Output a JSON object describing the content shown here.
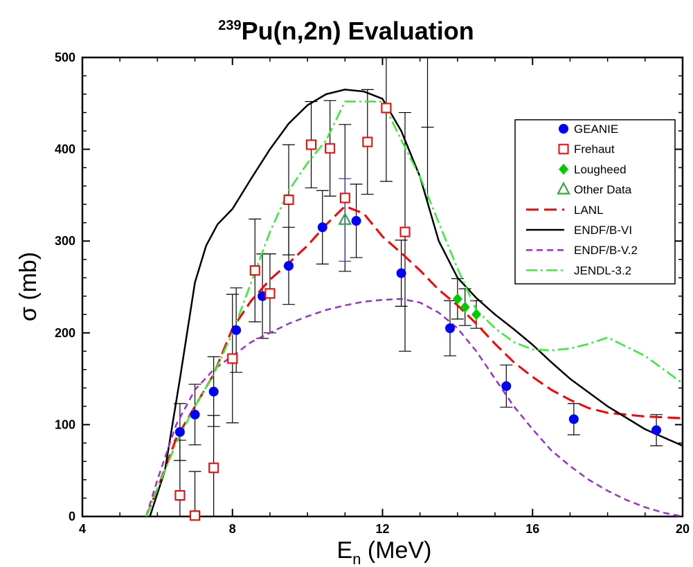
{
  "chart_data": {
    "type": "scatter",
    "title": {
      "superscript": "239",
      "main": "Pu(n,2n) Evaluation"
    },
    "xlabel": {
      "main": "E",
      "subscript": "n",
      "rest": " (MeV)"
    },
    "ylabel": "σ (mb)",
    "xlim": [
      4,
      20
    ],
    "ylim": [
      0,
      500
    ],
    "xticks": [
      4,
      8,
      12,
      16,
      20
    ],
    "yticks": [
      0,
      100,
      200,
      300,
      400,
      500
    ],
    "grid": false,
    "legend_position": "right",
    "series": [
      {
        "name": "GEANIE",
        "kind": "points",
        "marker": "circle",
        "color": "#0000ff",
        "points": [
          [
            6.6,
            92,
            31
          ],
          [
            7.0,
            111,
            33
          ],
          [
            7.5,
            136,
            38
          ],
          [
            8.1,
            203,
            46
          ],
          [
            8.8,
            240,
            46
          ],
          [
            9.5,
            273,
            42
          ],
          [
            10.4,
            315,
            40
          ],
          [
            11.3,
            322,
            40
          ],
          [
            12.5,
            265,
            36
          ],
          [
            13.8,
            205,
            30
          ],
          [
            15.3,
            142,
            23
          ],
          [
            17.1,
            106,
            17
          ],
          [
            19.3,
            94,
            17
          ]
        ]
      },
      {
        "name": "Frehaut",
        "kind": "points",
        "marker": "square",
        "color": "#ff0000",
        "points": [
          [
            6.6,
            23,
            60
          ],
          [
            7.0,
            1,
            48
          ],
          [
            7.5,
            53,
            57
          ],
          [
            8.0,
            172,
            70
          ],
          [
            8.6,
            268,
            56
          ],
          [
            9.0,
            243,
            43
          ],
          [
            9.5,
            345,
            60
          ],
          [
            10.1,
            405,
            47
          ],
          [
            10.6,
            401,
            52
          ],
          [
            11.0,
            347,
            80
          ],
          [
            11.6,
            408,
            57
          ],
          [
            12.1,
            445,
            80
          ],
          [
            12.6,
            310,
            130
          ]
        ]
      },
      {
        "name": "Lougheed",
        "kind": "points",
        "marker": "diamond",
        "color": "#00cc00",
        "points": [
          [
            14.0,
            237,
            22
          ],
          [
            14.2,
            228,
            20
          ],
          [
            14.5,
            220,
            15
          ]
        ]
      },
      {
        "name": "Other Data",
        "kind": "points",
        "marker": "triangle",
        "color": "#33aa33",
        "points": [
          [
            11.0,
            323,
            45
          ]
        ]
      },
      {
        "name": "LANL",
        "kind": "line",
        "color": "#ff0000",
        "dash": "18,8",
        "width": 3,
        "points": [
          [
            5.7,
            0
          ],
          [
            6.0,
            30
          ],
          [
            6.5,
            85
          ],
          [
            7.0,
            120
          ],
          [
            7.5,
            155
          ],
          [
            8.0,
            205
          ],
          [
            8.5,
            235
          ],
          [
            9.0,
            258
          ],
          [
            9.5,
            276
          ],
          [
            10.0,
            295
          ],
          [
            10.5,
            318
          ],
          [
            11.0,
            338
          ],
          [
            11.5,
            330
          ],
          [
            12.0,
            305
          ],
          [
            12.5,
            287
          ],
          [
            13.0,
            268
          ],
          [
            13.5,
            247
          ],
          [
            14.0,
            230
          ],
          [
            14.5,
            210
          ],
          [
            15.0,
            188
          ],
          [
            15.5,
            168
          ],
          [
            16.0,
            152
          ],
          [
            16.5,
            138
          ],
          [
            17.0,
            127
          ],
          [
            17.5,
            118
          ],
          [
            18.0,
            113
          ],
          [
            19.0,
            109
          ],
          [
            20.0,
            107
          ]
        ]
      },
      {
        "name": "ENDF/B-VI",
        "kind": "line",
        "color": "#000000",
        "dash": "",
        "width": 2.5,
        "points": [
          [
            5.8,
            0
          ],
          [
            6.2,
            50
          ],
          [
            6.6,
            150
          ],
          [
            7.0,
            255
          ],
          [
            7.3,
            295
          ],
          [
            7.6,
            318
          ],
          [
            8.0,
            335
          ],
          [
            8.5,
            368
          ],
          [
            9.0,
            400
          ],
          [
            9.5,
            428
          ],
          [
            10.0,
            448
          ],
          [
            10.5,
            460
          ],
          [
            11.0,
            465
          ],
          [
            11.5,
            463
          ],
          [
            12.0,
            455
          ],
          [
            12.5,
            420
          ],
          [
            13.0,
            370
          ],
          [
            13.5,
            300
          ],
          [
            14.0,
            260
          ],
          [
            14.5,
            238
          ],
          [
            15.0,
            220
          ],
          [
            15.5,
            204
          ],
          [
            16.0,
            187
          ],
          [
            16.5,
            168
          ],
          [
            17.0,
            150
          ],
          [
            18.0,
            120
          ],
          [
            19.0,
            95
          ],
          [
            20.0,
            77
          ]
        ]
      },
      {
        "name": "ENDF/B-V.2",
        "kind": "line",
        "color": "#9b30d0",
        "dash": "9,6",
        "width": 2.5,
        "points": [
          [
            5.7,
            0
          ],
          [
            6.0,
            40
          ],
          [
            6.5,
            100
          ],
          [
            7.0,
            138
          ],
          [
            7.5,
            160
          ],
          [
            8.0,
            175
          ],
          [
            8.5,
            190
          ],
          [
            9.0,
            200
          ],
          [
            9.5,
            210
          ],
          [
            10.0,
            218
          ],
          [
            10.5,
            225
          ],
          [
            11.0,
            230
          ],
          [
            11.5,
            234
          ],
          [
            12.0,
            236
          ],
          [
            12.5,
            237
          ],
          [
            13.0,
            233
          ],
          [
            13.5,
            222
          ],
          [
            14.0,
            205
          ],
          [
            14.5,
            180
          ],
          [
            15.0,
            150
          ],
          [
            15.5,
            120
          ],
          [
            16.0,
            95
          ],
          [
            16.5,
            72
          ],
          [
            17.0,
            55
          ],
          [
            17.5,
            40
          ],
          [
            18.0,
            28
          ],
          [
            18.5,
            18
          ],
          [
            19.0,
            10
          ],
          [
            19.5,
            4
          ],
          [
            20.0,
            0
          ]
        ]
      },
      {
        "name": "JENDL-3.2",
        "kind": "line",
        "color": "#33ee33",
        "dash": "16,5,3,5",
        "width": 2.5,
        "points": [
          [
            5.7,
            0
          ],
          [
            6.1,
            40
          ],
          [
            6.5,
            80
          ],
          [
            7.0,
            120
          ],
          [
            7.5,
            155
          ],
          [
            8.0,
            200
          ],
          [
            8.5,
            255
          ],
          [
            9.0,
            310
          ],
          [
            9.5,
            355
          ],
          [
            10.0,
            385
          ],
          [
            10.5,
            410
          ],
          [
            11.0,
            452
          ],
          [
            12.0,
            452
          ],
          [
            12.5,
            410
          ],
          [
            13.0,
            370
          ],
          [
            13.5,
            320
          ],
          [
            14.0,
            270
          ],
          [
            14.5,
            225
          ],
          [
            15.0,
            205
          ],
          [
            15.5,
            190
          ],
          [
            16.0,
            182
          ],
          [
            16.5,
            181
          ],
          [
            17.0,
            183
          ],
          [
            17.5,
            188
          ],
          [
            18.0,
            195
          ],
          [
            18.5,
            185
          ],
          [
            19.0,
            175
          ],
          [
            19.5,
            160
          ],
          [
            20.0,
            145
          ]
        ]
      }
    ],
    "extra_error_bars": [
      {
        "x": 13.2,
        "y_low": 344,
        "y_high": 500,
        "cap_y": 424
      }
    ]
  }
}
